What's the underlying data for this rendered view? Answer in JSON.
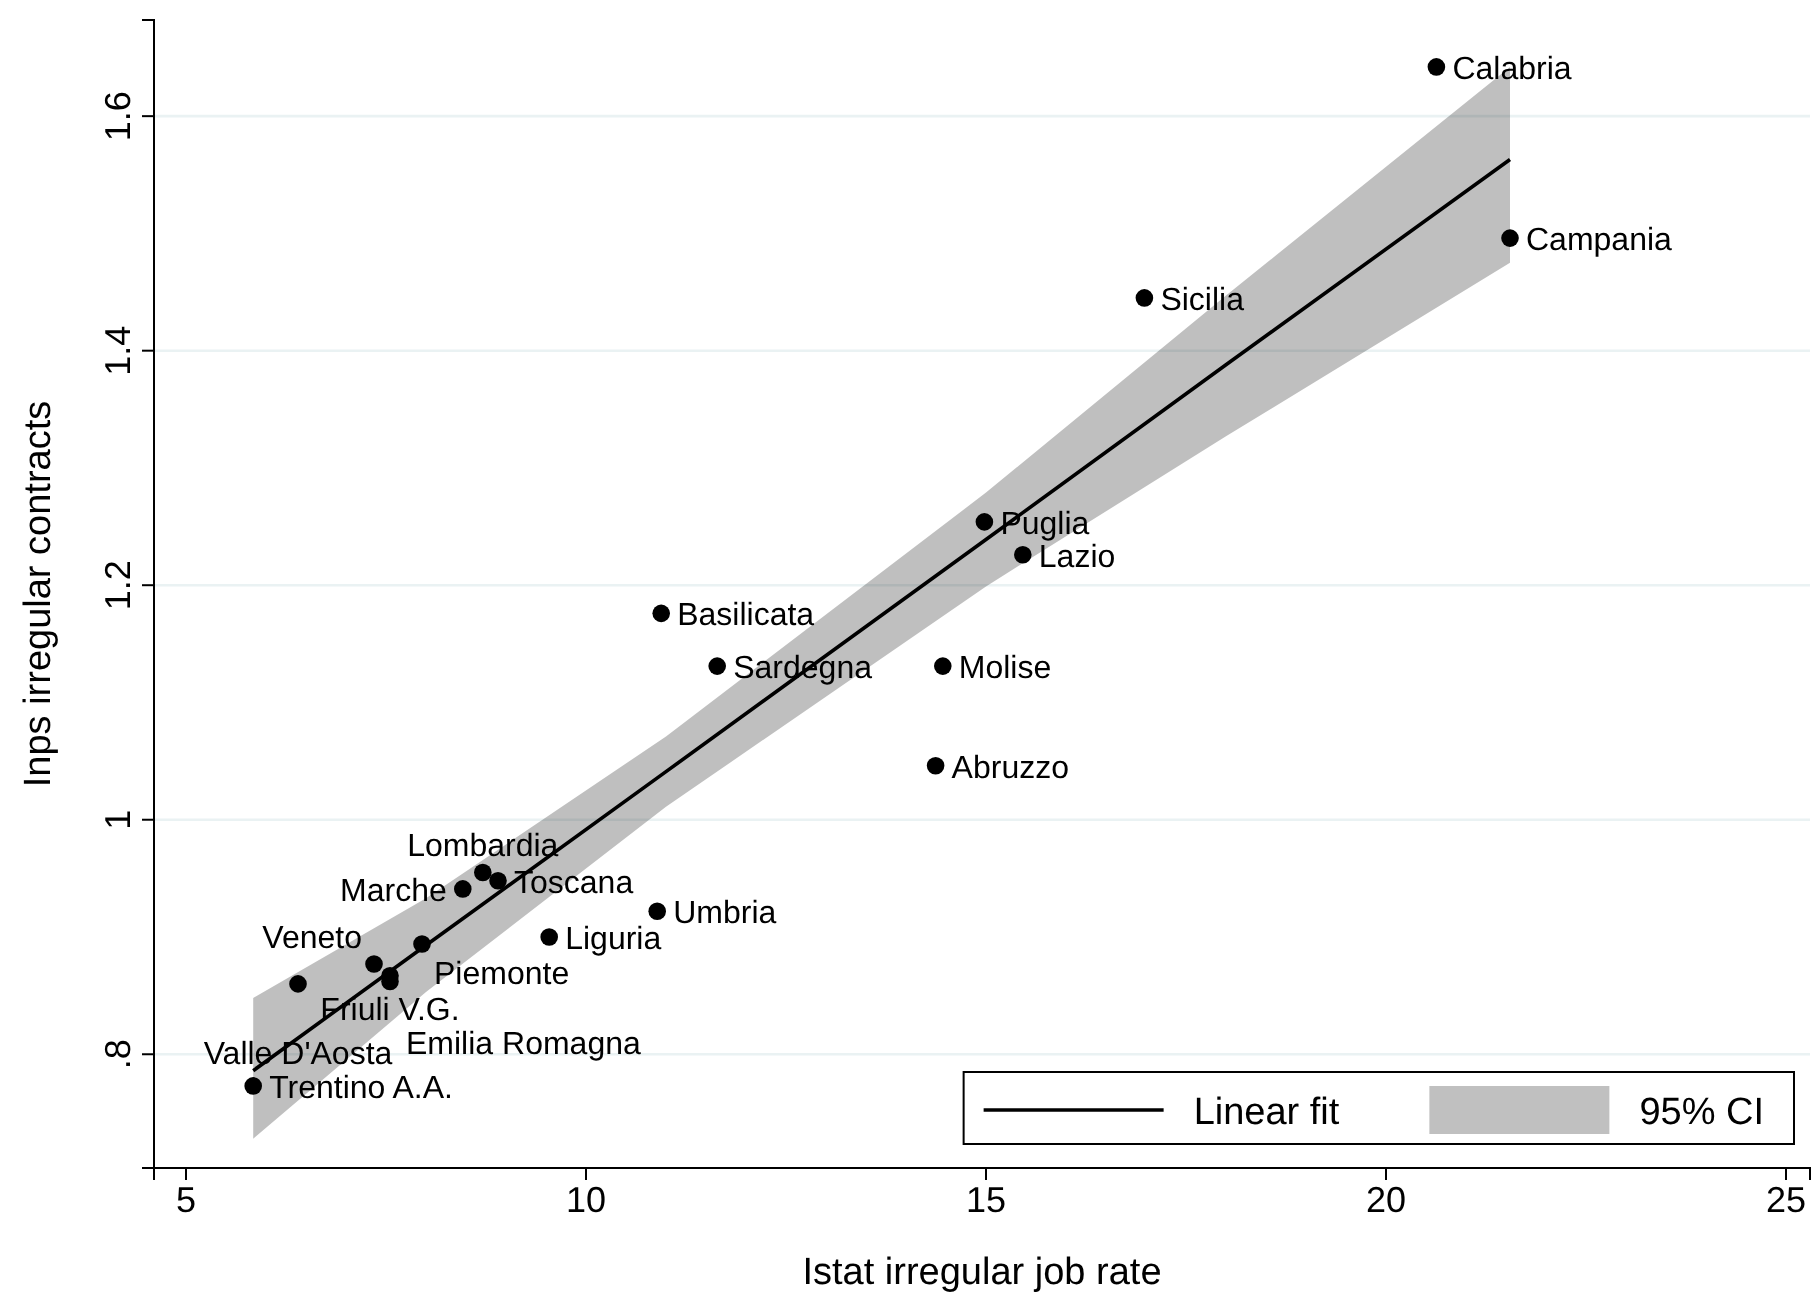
{
  "chart_data": {
    "type": "scatter",
    "xlabel": "Istat irregular job rate",
    "ylabel": "Inps irregular contracts",
    "xlim": [
      4.6,
      25.3
    ],
    "ylim": [
      0.703,
      1.682
    ],
    "xticks": [
      5,
      10,
      15,
      20,
      25
    ],
    "yticks": [
      {
        "value": 0.8,
        "label": ".8"
      },
      1,
      {
        "value": 1.2,
        "label": "1.2"
      },
      {
        "value": 1.4,
        "label": "1.4"
      },
      {
        "value": 1.6,
        "label": "1.6"
      }
    ],
    "grid": "y",
    "legend": "bottom right",
    "series": [
      {
        "name": "Linear fit",
        "type": "line",
        "color": "#000000",
        "x": [
          5.84,
          8,
          11,
          15,
          18,
          21.55
        ],
        "values": [
          0.786,
          0.893,
          1.041,
          1.239,
          1.388,
          1.563
        ],
        "lower": [
          0.728,
          0.853,
          1.011,
          1.199,
          1.327,
          1.475
        ],
        "upper": [
          0.848,
          0.933,
          1.071,
          1.279,
          1.447,
          1.642
        ]
      },
      {
        "name": "95% CI",
        "type": "area",
        "color": "#c0c0c0"
      },
      {
        "marker": "circle",
        "color": "#000000",
        "x": [
          20.63,
          21.55,
          16.98,
          14.98,
          15.46,
          10.94,
          11.64,
          14.46,
          14.37,
          10.89,
          9.54,
          8.71,
          8.9,
          8.46,
          7.95,
          7.35,
          7.55,
          7.55,
          6.4,
          5.84
        ],
        "values": [
          1.642,
          1.496,
          1.445,
          1.254,
          1.226,
          1.176,
          1.131,
          1.131,
          1.046,
          0.922,
          0.9,
          0.955,
          0.948,
          0.941,
          0.894,
          0.877,
          0.867,
          0.862,
          0.86,
          0.773
        ]
      }
    ],
    "annotations": [
      {
        "text": "Calabria",
        "x": 20.63,
        "y": 1.642
      },
      {
        "text": "Campania",
        "x": 21.55,
        "y": 1.496
      },
      {
        "text": "Sicilia",
        "x": 16.98,
        "y": 1.445
      },
      {
        "text": "Puglia",
        "x": 14.98,
        "y": 1.254
      },
      {
        "text": "Lazio",
        "x": 15.46,
        "y": 1.226
      },
      {
        "text": "Basilicata",
        "x": 10.94,
        "y": 1.176
      },
      {
        "text": "Sardegna",
        "x": 11.64,
        "y": 1.131
      },
      {
        "text": "Molise",
        "x": 14.46,
        "y": 1.131
      },
      {
        "text": "Abruzzo",
        "x": 14.37,
        "y": 1.046
      },
      {
        "text": "Umbria",
        "x": 10.89,
        "y": 0.922
      },
      {
        "text": "Liguria",
        "x": 9.54,
        "y": 0.9
      },
      {
        "text": "Lombardia",
        "x": 8.71,
        "y": 0.955
      },
      {
        "text": "Toscana",
        "x": 8.9,
        "y": 0.948
      },
      {
        "text": "Marche",
        "x": 8.46,
        "y": 0.941
      },
      {
        "text": "Piemonte",
        "x": 7.95,
        "y": 0.894
      },
      {
        "text": "Veneto",
        "x": 7.35,
        "y": 0.877
      },
      {
        "text": "Friuli V.G.",
        "x": 7.55,
        "y": 0.867
      },
      {
        "text": "Emilia Romagna",
        "x": 7.55,
        "y": 0.862
      },
      {
        "text": "Valle D'Aosta",
        "x": 6.4,
        "y": 0.86
      },
      {
        "text": "Trentino A.A.",
        "x": 5.84,
        "y": 0.773
      }
    ]
  }
}
